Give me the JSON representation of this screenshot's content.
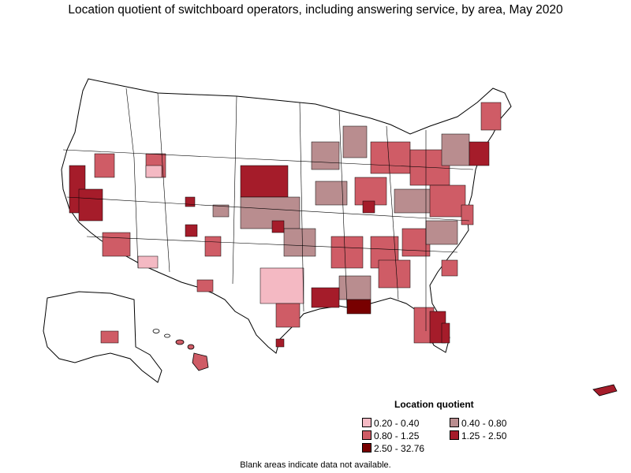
{
  "title": "Location quotient of switchboard operators, including answering service, by area, May 2020",
  "legend": {
    "title": "Location quotient",
    "items": [
      {
        "label": "0.20 - 0.40",
        "color": "#f4b9c3"
      },
      {
        "label": "0.40 - 0.80",
        "color": "#b98d8f"
      },
      {
        "label": "0.80 - 1.25",
        "color": "#cf5c66"
      },
      {
        "label": "1.25 - 2.50",
        "color": "#a51c2a"
      },
      {
        "label": "2.50 - 32.76",
        "color": "#780000"
      }
    ]
  },
  "note": "Blank areas indicate data not available."
}
